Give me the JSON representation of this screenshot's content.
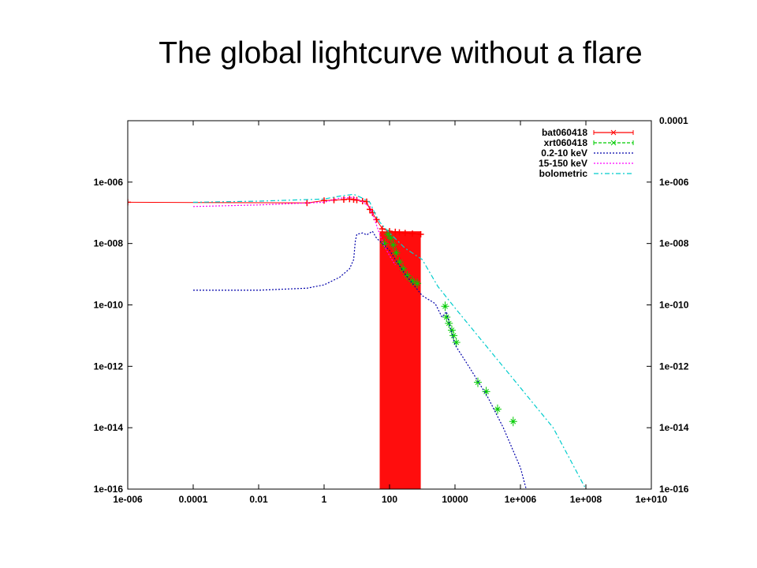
{
  "slide": {
    "title": "The global lightcurve without a flare"
  },
  "chart_data": {
    "type": "line",
    "title": "",
    "xlabel": "",
    "ylabel": "",
    "x_scale": "log",
    "y_scale": "log",
    "xlim": [
      1e-06,
      10000000000.0
    ],
    "ylim": [
      1e-16,
      0.0001
    ],
    "y2lim": [
      1e-16,
      0.0001
    ],
    "x_ticks": [
      "1e-006",
      "0.0001",
      "0.01",
      "1",
      "100",
      "10000",
      "1e+006",
      "1e+008",
      "1e+010"
    ],
    "y_ticks": [
      "1e-016",
      "1e-014",
      "1e-012",
      "1e-010",
      "1e-008",
      "1e-006"
    ],
    "y2_ticks": [
      "1e-016",
      "1e-014",
      "1e-012",
      "1e-010",
      "1e-008",
      "1e-006",
      "0.0001"
    ],
    "grid": false,
    "legend_position": "top-right",
    "series": [
      {
        "name": "bat060418",
        "color": "#ff0000",
        "style": "points-errorbars",
        "points": [
          [
            1e-06,
            2.2e-07
          ],
          [
            0.3,
            2.1e-07
          ],
          [
            1,
            2.5e-07
          ],
          [
            2,
            2.6e-07
          ],
          [
            4,
            2.7e-07
          ],
          [
            6,
            2.8e-07
          ],
          [
            8,
            2.7e-07
          ],
          [
            10,
            2.6e-07
          ],
          [
            15,
            2.4e-07
          ],
          [
            20,
            2.3e-07
          ],
          [
            25,
            1.3e-07
          ],
          [
            30,
            1e-07
          ],
          [
            40,
            6e-08
          ],
          [
            60,
            3e-08
          ],
          [
            100,
            2.5e-08
          ],
          [
            150,
            2.4e-08
          ],
          [
            200,
            2.3e-08
          ],
          [
            300,
            2.2e-08
          ],
          [
            500,
            2.1e-08
          ],
          [
            900,
            2e-08
          ]
        ],
        "errorbar_block": {
          "x_from": 50,
          "x_to": 900,
          "y_top": 2.5e-08
        }
      },
      {
        "name": "xrt060418",
        "color": "#00cc00",
        "style": "points-errorbars",
        "points": [
          [
            70,
            1e-08
          ],
          [
            90,
            2e-08
          ],
          [
            110,
            1.5e-08
          ],
          [
            130,
            9e-09
          ],
          [
            160,
            5e-09
          ],
          [
            200,
            2.5e-09
          ],
          [
            260,
            1.5e-09
          ],
          [
            350,
            9e-10
          ],
          [
            500,
            6e-10
          ],
          [
            700,
            5e-10
          ],
          [
            5000,
            9e-11
          ],
          [
            5500,
            4e-11
          ],
          [
            6500,
            2.5e-11
          ],
          [
            8000,
            1.5e-11
          ],
          [
            9000,
            1e-11
          ],
          [
            11000,
            6e-12
          ],
          [
            50000,
            3e-13
          ],
          [
            90000,
            1.5e-13
          ],
          [
            200000,
            4e-14
          ],
          [
            600000,
            1.6e-14
          ]
        ]
      },
      {
        "name": "0.2-10 keV",
        "color": "#0000aa",
        "style": "dotted",
        "points": [
          [
            0.0001,
            3e-10
          ],
          [
            0.01,
            3e-10
          ],
          [
            0.3,
            3.5e-10
          ],
          [
            1,
            4.5e-10
          ],
          [
            3,
            8e-10
          ],
          [
            6,
            1.5e-09
          ],
          [
            8,
            3e-09
          ],
          [
            9,
            1.2e-08
          ],
          [
            10,
            2e-08
          ],
          [
            15,
            2.2e-08
          ],
          [
            20,
            1.9e-08
          ],
          [
            30,
            2.5e-08
          ],
          [
            40,
            1.5e-08
          ],
          [
            60,
            1e-08
          ],
          [
            100,
            6e-09
          ],
          [
            150,
            3e-09
          ],
          [
            300,
            1e-09
          ],
          [
            1000,
            2e-10
          ],
          [
            2500,
            1.1e-10
          ],
          [
            4000,
            4e-11
          ],
          [
            5500,
            6e-11
          ],
          [
            7000,
            2e-11
          ],
          [
            10000,
            5e-12
          ],
          [
            30000,
            8e-13
          ],
          [
            100000,
            1e-13
          ],
          [
            300000,
            1e-14
          ],
          [
            1000000,
            5e-16
          ],
          [
            1500000,
            1e-16
          ]
        ]
      },
      {
        "name": "15-150 keV",
        "color": "#ff00ff",
        "style": "dotted",
        "points": [
          [
            0.0001,
            1.6e-07
          ],
          [
            0.01,
            1.8e-07
          ],
          [
            1,
            2.2e-07
          ],
          [
            3,
            3e-07
          ],
          [
            8,
            3.2e-07
          ],
          [
            15,
            2.3e-07
          ],
          [
            25,
            1.5e-07
          ],
          [
            35,
            6e-08
          ],
          [
            50,
            2e-08
          ],
          [
            70,
            8e-09
          ],
          [
            100,
            4e-09
          ],
          [
            150,
            2e-09
          ]
        ]
      },
      {
        "name": "bolometric",
        "color": "#00cccc",
        "style": "dash-dot",
        "points": [
          [
            0.0001,
            2.2e-07
          ],
          [
            0.01,
            2.4e-07
          ],
          [
            1,
            2.8e-07
          ],
          [
            3,
            3.5e-07
          ],
          [
            8,
            4e-07
          ],
          [
            15,
            3e-07
          ],
          [
            25,
            2.2e-07
          ],
          [
            35,
            1e-07
          ],
          [
            50,
            5e-08
          ],
          [
            100,
            2.2e-08
          ],
          [
            300,
            7e-09
          ],
          [
            1000,
            3e-09
          ],
          [
            3000,
            4e-10
          ],
          [
            10000,
            8e-11
          ],
          [
            100000,
            4e-12
          ],
          [
            1000000,
            2e-13
          ],
          [
            10000000,
            1e-14
          ],
          [
            100000000,
            1e-16
          ]
        ]
      }
    ]
  }
}
